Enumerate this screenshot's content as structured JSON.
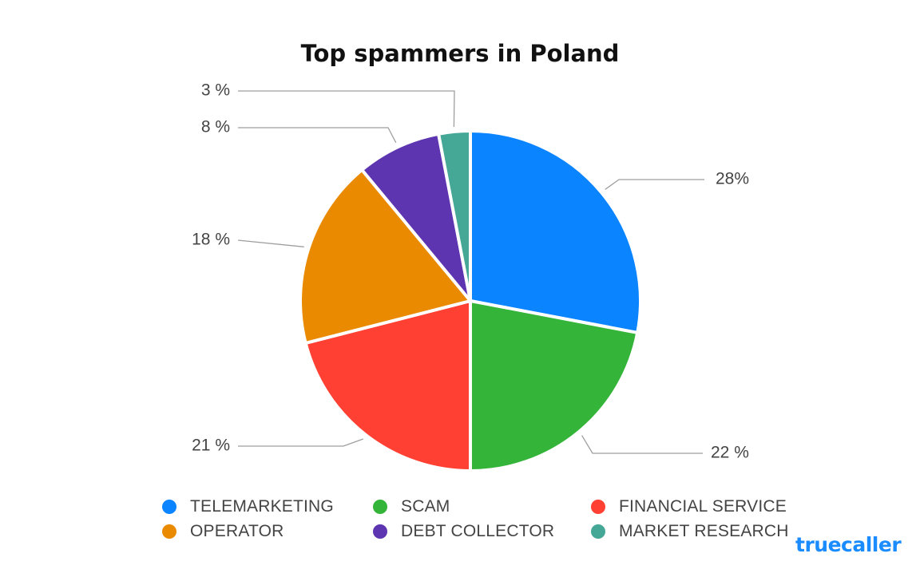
{
  "brand": "truecaller",
  "chart_data": {
    "type": "pie",
    "title": "Top spammers in Poland",
    "legend_position": "bottom",
    "slices": [
      {
        "name": "TELEMARKETING",
        "value": 28,
        "label": "28%",
        "color": "#0a84ff"
      },
      {
        "name": "SCAM",
        "value": 22,
        "label": "22 %",
        "color": "#34b53a"
      },
      {
        "name": "FINANCIAL SERVICE",
        "value": 21,
        "label": "21 %",
        "color": "#ff4032"
      },
      {
        "name": "OPERATOR",
        "value": 18,
        "label": "18 %",
        "color": "#ea8a00"
      },
      {
        "name": "DEBT COLLECTOR",
        "value": 8,
        "label": "8 %",
        "color": "#5e35b1"
      },
      {
        "name": "MARKET RESEARCH",
        "value": 3,
        "label": "3 %",
        "color": "#45a796"
      }
    ]
  }
}
